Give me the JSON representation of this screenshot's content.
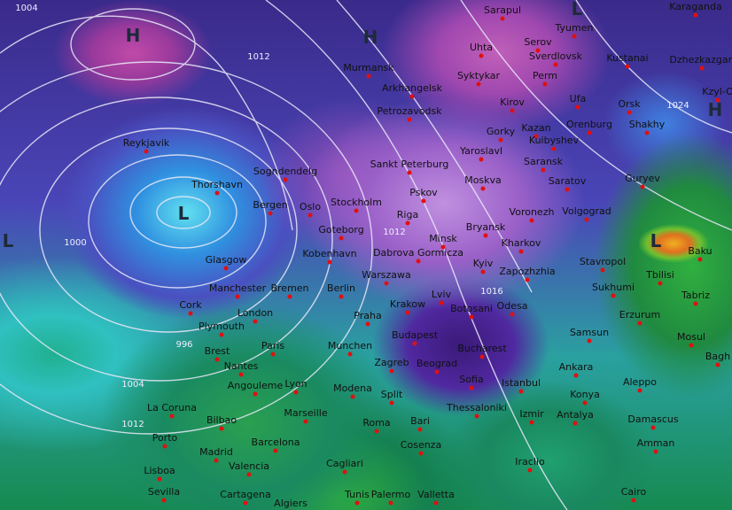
{
  "map": {
    "type": "surface pressure isobars with 850hPa temperature shading",
    "colors": {
      "cold": "#9a50b8",
      "very_cold": "#3a1a78",
      "cool": "#4a50c0",
      "mild": "#2aa050",
      "warm": "#e07020",
      "isobar": "#e8e8f8",
      "city_dot": "#e01010"
    },
    "cities": [
      {
        "name": "Sarapul"
      },
      {
        "name": "Karaganda"
      },
      {
        "name": "Tyumen"
      },
      {
        "name": "Serov"
      },
      {
        "name": "Uhta"
      },
      {
        "name": "Sverdlovsk"
      },
      {
        "name": "Kustanai"
      },
      {
        "name": "Dzhezkazgan"
      },
      {
        "name": "Murmansk"
      },
      {
        "name": "Arkhangelsk"
      },
      {
        "name": "Syktykar"
      },
      {
        "name": "Perm"
      },
      {
        "name": "Kirov"
      },
      {
        "name": "Ufa"
      },
      {
        "name": "Orsk"
      },
      {
        "name": "Kzyl-O"
      },
      {
        "name": "Petrozavodsk"
      },
      {
        "name": "Gorky"
      },
      {
        "name": "Kazan"
      },
      {
        "name": "Orenburg"
      },
      {
        "name": "Kuibyshev"
      },
      {
        "name": "Shakhy"
      },
      {
        "name": "Yaroslavl"
      },
      {
        "name": "Saransk"
      },
      {
        "name": "Sankt Peterburg"
      },
      {
        "name": "Moskva"
      },
      {
        "name": "Saratov"
      },
      {
        "name": "Guryev"
      },
      {
        "name": "Reykjavik"
      },
      {
        "name": "Thorshavn"
      },
      {
        "name": "Sogndendelg"
      },
      {
        "name": "Bergen"
      },
      {
        "name": "Oslo"
      },
      {
        "name": "Stockholm"
      },
      {
        "name": "Pskov"
      },
      {
        "name": "Riga"
      },
      {
        "name": "Bryansk"
      },
      {
        "name": "Voronezh"
      },
      {
        "name": "Volgograd"
      },
      {
        "name": "Goteborg"
      },
      {
        "name": "Minsk"
      },
      {
        "name": "Kharkov"
      },
      {
        "name": "Kobenhavn"
      },
      {
        "name": "Dabrova Gormicza"
      },
      {
        "name": "Kyiv"
      },
      {
        "name": "Zapozhzhia"
      },
      {
        "name": "Stavropol"
      },
      {
        "name": "Baku"
      },
      {
        "name": "Glasgow"
      },
      {
        "name": "Manchester"
      },
      {
        "name": "Bremen"
      },
      {
        "name": "Berlin"
      },
      {
        "name": "Warszawa"
      },
      {
        "name": "Sukhumi"
      },
      {
        "name": "Tbilisi"
      },
      {
        "name": "Tabriz"
      },
      {
        "name": "Cork"
      },
      {
        "name": "London"
      },
      {
        "name": "Krakow"
      },
      {
        "name": "Lviv"
      },
      {
        "name": "Botosani"
      },
      {
        "name": "Odesa"
      },
      {
        "name": "Plymouth"
      },
      {
        "name": "Praha"
      },
      {
        "name": "Erzurum"
      },
      {
        "name": "Mosul"
      },
      {
        "name": "Paris"
      },
      {
        "name": "Brest"
      },
      {
        "name": "Munchen"
      },
      {
        "name": "Budapest"
      },
      {
        "name": "Bucharest"
      },
      {
        "name": "Samsun"
      },
      {
        "name": "Bagh"
      },
      {
        "name": "Nantes"
      },
      {
        "name": "Angouleme"
      },
      {
        "name": "Lyon"
      },
      {
        "name": "Zagreb"
      },
      {
        "name": "Beograd"
      },
      {
        "name": "Ankara"
      },
      {
        "name": "Aleppo"
      },
      {
        "name": "Sofia"
      },
      {
        "name": "Istanbul"
      },
      {
        "name": "Modena"
      },
      {
        "name": "Split"
      },
      {
        "name": "Konya"
      },
      {
        "name": "Thessaloniki"
      },
      {
        "name": "Izmir"
      },
      {
        "name": "Antalya"
      },
      {
        "name": "La Coruna"
      },
      {
        "name": "Marseille"
      },
      {
        "name": "Bilbao"
      },
      {
        "name": "Bari"
      },
      {
        "name": "Roma"
      },
      {
        "name": "Damascus"
      },
      {
        "name": "Porto"
      },
      {
        "name": "Barcelona"
      },
      {
        "name": "Cosenza"
      },
      {
        "name": "Amman"
      },
      {
        "name": "Madrid"
      },
      {
        "name": "Valencia"
      },
      {
        "name": "Cagliari"
      },
      {
        "name": "Iraclio"
      },
      {
        "name": "Lisboa"
      },
      {
        "name": "Sevilla"
      },
      {
        "name": "Cartagena"
      },
      {
        "name": "Tunis"
      },
      {
        "name": "Palermo"
      },
      {
        "name": "Valletta"
      },
      {
        "name": "Cairo"
      },
      {
        "name": "Algiers"
      }
    ],
    "pressure_centers": [
      "H",
      "H",
      "L",
      "H",
      "L",
      "L",
      "L"
    ],
    "isobar_labels": [
      "1004",
      "1012",
      "1000",
      "1012",
      "1016",
      "1024",
      "996",
      "1004",
      "1012"
    ]
  }
}
